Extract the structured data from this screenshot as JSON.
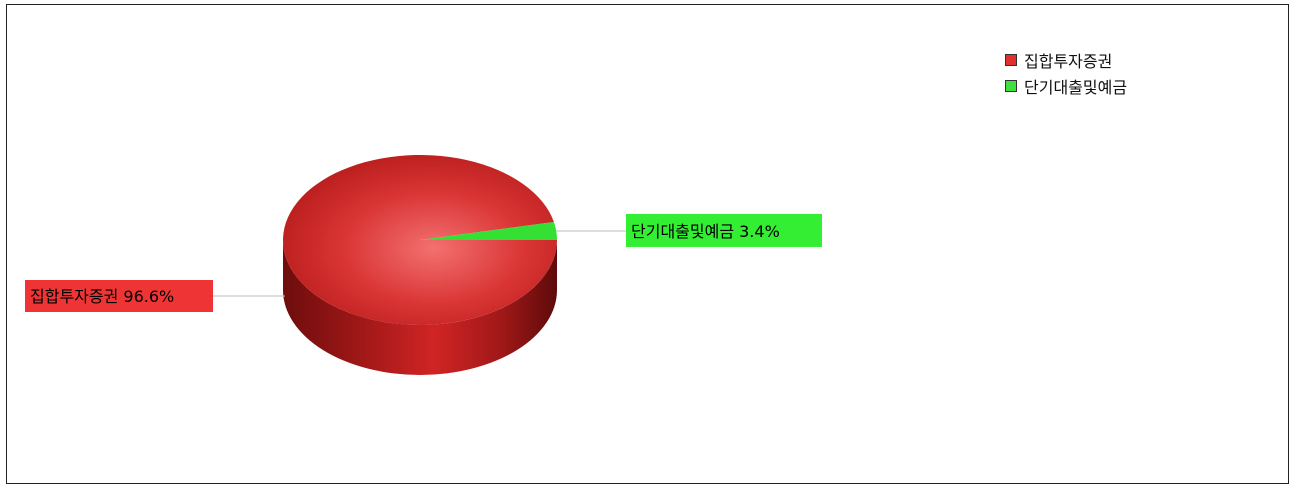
{
  "chart_data": {
    "type": "pie",
    "title": "",
    "style": "3d",
    "legend_position": "top-right",
    "slices": [
      {
        "label": "집합투자증권",
        "value": 96.6,
        "data_label": "집합투자증권 96.6%",
        "color": "#d42f2f"
      },
      {
        "label": "단기대출및예금",
        "value": 3.4,
        "data_label": "단기대출및예금 3.4%",
        "color": "#33e033"
      }
    ]
  },
  "legend": {
    "items": [
      {
        "label": "집합투자증권",
        "color": "#e03030"
      },
      {
        "label": "단기대출및예금",
        "color": "#40e040"
      }
    ]
  }
}
